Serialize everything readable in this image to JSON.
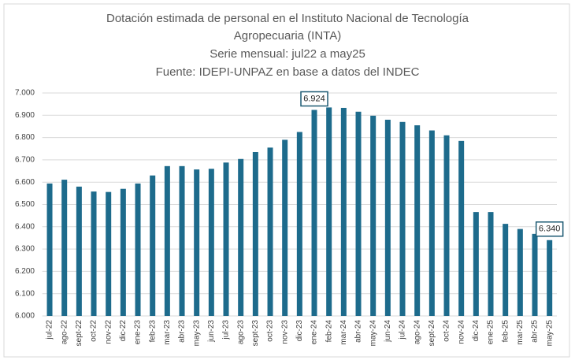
{
  "chart_data": {
    "type": "bar",
    "title": [
      "Dotación estimada de personal en el Instituto Nacional de Tecnología",
      "Agropecuaria (INTA)"
    ],
    "subtitle": [
      "Serie mensual: jul22 a may25",
      "Fuente: IDEPI-UNPAZ en base a datos del INDEC"
    ],
    "categories": [
      "jul-22",
      "ago-22",
      "sept-22",
      "oct-22",
      "nov-22",
      "dic-22",
      "ene-23",
      "feb-23",
      "mar-23",
      "abr-23",
      "may-23",
      "jun-23",
      "jul-23",
      "ago-23",
      "sept-23",
      "oct-23",
      "nov-23",
      "dic-23",
      "ene-24",
      "feb-24",
      "mar-24",
      "abr-24",
      "may-24",
      "jun-24",
      "jul-24",
      "ago-24",
      "sept-24",
      "oct-24",
      "nov-24",
      "dic-24",
      "ene-25",
      "feb-25",
      "mar-25",
      "abr-25",
      "may-25"
    ],
    "values": [
      6594,
      6611,
      6580,
      6558,
      6556,
      6570,
      6594,
      6630,
      6672,
      6672,
      6657,
      6660,
      6688,
      6704,
      6735,
      6755,
      6790,
      6825,
      6924,
      6935,
      6933,
      6916,
      6898,
      6880,
      6870,
      6855,
      6832,
      6810,
      6785,
      6466,
      6466,
      6413,
      6390,
      6368,
      6340
    ],
    "value_labels": [
      null,
      null,
      null,
      null,
      null,
      null,
      null,
      null,
      null,
      null,
      null,
      null,
      null,
      null,
      null,
      null,
      null,
      null,
      "6.924",
      null,
      null,
      null,
      null,
      null,
      null,
      null,
      null,
      null,
      null,
      null,
      null,
      null,
      null,
      null,
      "6.340"
    ],
    "color": "#1d6b8c",
    "ylim": [
      6000,
      7000
    ],
    "yticks": [
      {
        "value": 6000,
        "label": "6.000"
      },
      {
        "value": 6100,
        "label": "6.100"
      },
      {
        "value": 6200,
        "label": "6.200"
      },
      {
        "value": 6300,
        "label": "6.300"
      },
      {
        "value": 6400,
        "label": "6.400"
      },
      {
        "value": 6500,
        "label": "6.500"
      },
      {
        "value": 6600,
        "label": "6.600"
      },
      {
        "value": 6700,
        "label": "6.700"
      },
      {
        "value": 6800,
        "label": "6.800"
      },
      {
        "value": 6900,
        "label": "6.900"
      },
      {
        "value": 7000,
        "label": "7.000"
      }
    ],
    "grid": true
  }
}
